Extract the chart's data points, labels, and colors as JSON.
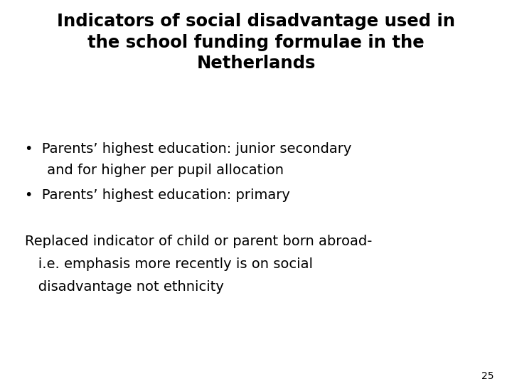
{
  "title_lines": [
    "Indicators of social disadvantage used in",
    "the school funding formulae in the",
    "Netherlands"
  ],
  "bullet1_line1": "•  Parents’ highest education: junior secondary",
  "bullet1_line2": "     and for higher per pupil allocation",
  "bullet2_line1": "•  Parents’ highest education: primary",
  "body_line1": "Replaced indicator of child or parent born abroad-",
  "body_line2": "   i.e. emphasis more recently is on social",
  "body_line3": "   disadvantage not ethnicity",
  "page_number": "25",
  "bg_color": "#ffffff",
  "text_color": "#000000",
  "title_fontsize": 17.5,
  "bullet_fontsize": 14,
  "body_fontsize": 14,
  "page_fontsize": 10
}
